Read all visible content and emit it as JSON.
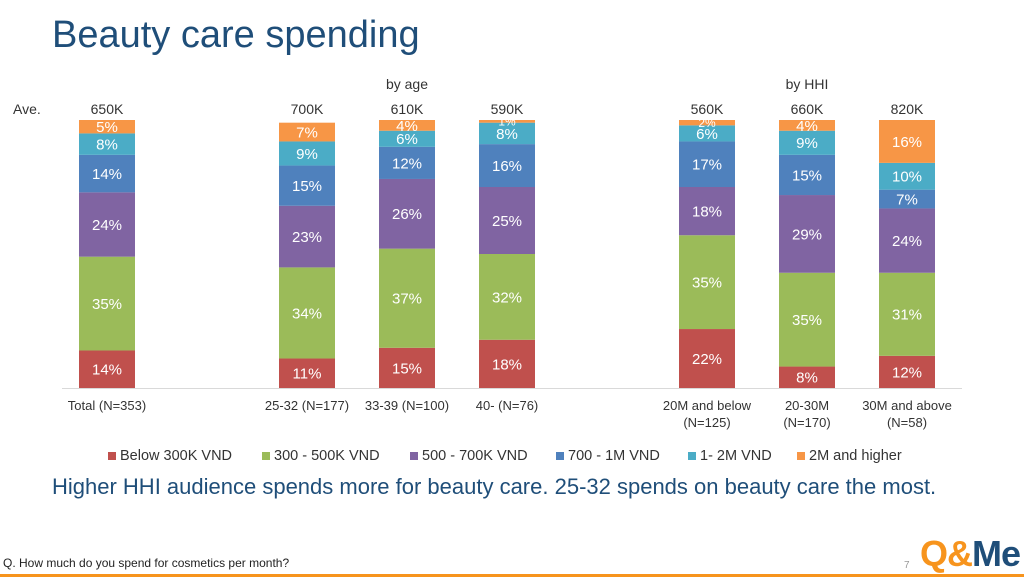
{
  "slide": {
    "title": "Beauty care spending",
    "conclusion": "Higher HHI audience spends more for beauty care. 25-32 spends on beauty care the most.",
    "question": "Q. How much do you spend for cosmetics per month?",
    "page_number": "7",
    "logo": {
      "q": "Q",
      "amp": "&",
      "m": "Me"
    }
  },
  "chart_data": {
    "type": "stacked_bar",
    "unit": "%",
    "average_label": "Ave.",
    "group_labels": [
      "by age",
      "by HHI"
    ],
    "categories": [
      "Total (N=353)",
      "25-32 (N=177)",
      "33-39 (N=100)",
      "40- (N=76)",
      "20M and below (N=125)",
      "20-30M (N=170)",
      "30M and above (N=58)"
    ],
    "category_lines": [
      [
        "Total (N=353)"
      ],
      [
        "25-32 (N=177)"
      ],
      [
        "33-39 (N=100)"
      ],
      [
        "40- (N=76)"
      ],
      [
        "20M and below",
        "(N=125)"
      ],
      [
        "20-30M",
        "(N=170)"
      ],
      [
        "30M and above",
        "(N=58)"
      ]
    ],
    "averages": [
      "650K",
      "700K",
      "610K",
      "590K",
      "560K",
      "660K",
      "820K"
    ],
    "series": [
      {
        "name": "Below 300K VND",
        "color": "#c0504d",
        "values": [
          14,
          11,
          15,
          18,
          22,
          8,
          12
        ]
      },
      {
        "name": "300 - 500K VND",
        "color": "#9bbb59",
        "values": [
          35,
          34,
          37,
          32,
          35,
          35,
          31
        ]
      },
      {
        "name": "500 - 700K VND",
        "color": "#8064a2",
        "values": [
          24,
          23,
          26,
          25,
          18,
          29,
          24
        ]
      },
      {
        "name": "700 - 1M VND",
        "color": "#4f81bd",
        "values": [
          14,
          15,
          12,
          16,
          17,
          15,
          7
        ]
      },
      {
        "name": "1- 2M VND",
        "color": "#4bacc6",
        "values": [
          8,
          9,
          6,
          8,
          6,
          9,
          10
        ]
      },
      {
        "name": "2M and higher",
        "color": "#f79646",
        "values": [
          5,
          7,
          4,
          1,
          2,
          4,
          16
        ]
      }
    ],
    "ylim": [
      0,
      100
    ],
    "legend_position": "bottom"
  }
}
